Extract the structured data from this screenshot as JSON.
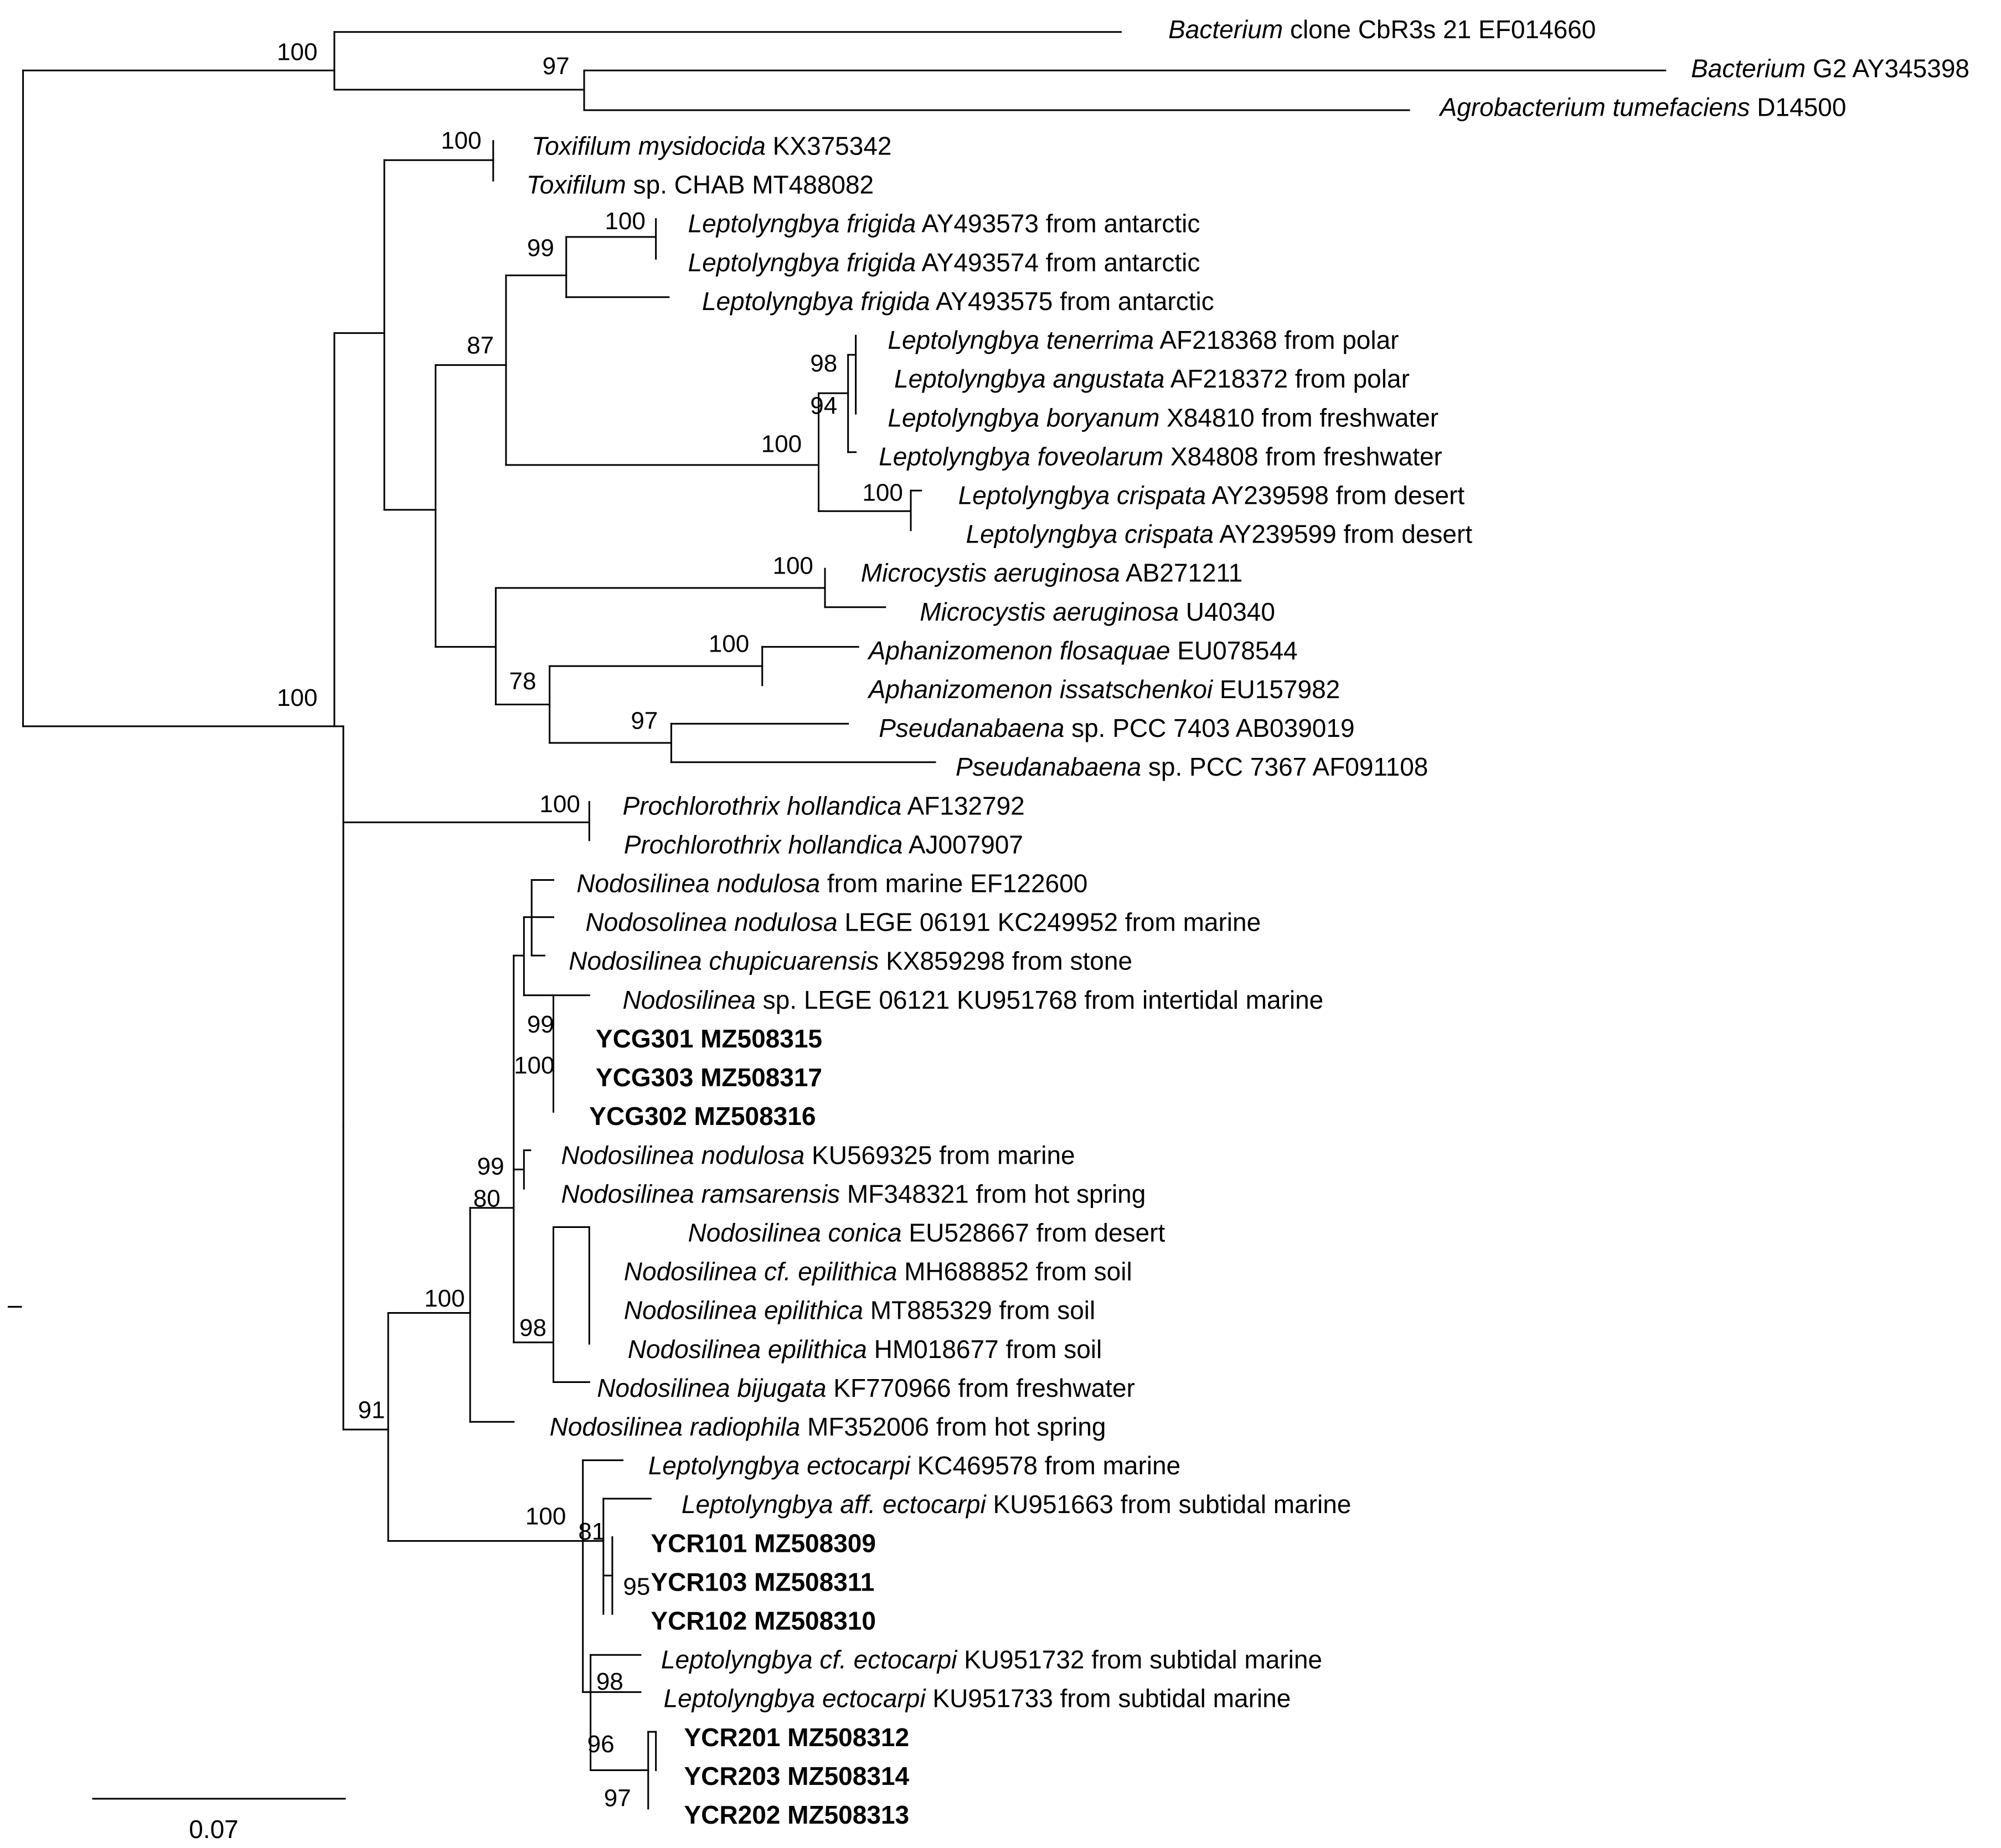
{
  "figure": {
    "type": "phylogenetic_tree",
    "scale_bar": {
      "label": "0.07"
    },
    "stray_mark": "–"
  },
  "taxa": [
    {
      "id": "t1",
      "parts": [
        [
          "i",
          "Bacterium"
        ],
        [
          "n",
          " clone CbR3s 21 EF014660"
        ]
      ]
    },
    {
      "id": "t2",
      "parts": [
        [
          "i",
          "Bacterium"
        ],
        [
          "n",
          " G2 AY345398"
        ]
      ]
    },
    {
      "id": "t3",
      "parts": [
        [
          "i",
          "Agrobacterium tumefaciens"
        ],
        [
          "n",
          " D14500"
        ]
      ]
    },
    {
      "id": "t4",
      "parts": [
        [
          "i",
          "Toxifilum mysidocida"
        ],
        [
          "n",
          " KX375342"
        ]
      ]
    },
    {
      "id": "t5",
      "parts": [
        [
          "i",
          "Toxifilum"
        ],
        [
          "n",
          " sp. CHAB MT488082"
        ]
      ]
    },
    {
      "id": "t6",
      "parts": [
        [
          "i",
          "Leptolyngbya frigida"
        ],
        [
          "n",
          " AY493573 from antarctic"
        ]
      ]
    },
    {
      "id": "t7",
      "parts": [
        [
          "i",
          "Leptolyngbya frigida"
        ],
        [
          "n",
          " AY493574 from antarctic"
        ]
      ]
    },
    {
      "id": "t8",
      "parts": [
        [
          "i",
          "Leptolyngbya frigida"
        ],
        [
          "n",
          " AY493575 from antarctic"
        ]
      ]
    },
    {
      "id": "t9",
      "parts": [
        [
          "i",
          "Leptolyngbya tenerrima"
        ],
        [
          "n",
          " AF218368 from polar"
        ]
      ]
    },
    {
      "id": "t10",
      "parts": [
        [
          "i",
          "Leptolyngbya angustata"
        ],
        [
          "n",
          " AF218372 from polar"
        ]
      ]
    },
    {
      "id": "t11",
      "parts": [
        [
          "i",
          "Leptolyngbya boryanum"
        ],
        [
          "n",
          " X84810 from freshwater"
        ]
      ]
    },
    {
      "id": "t12",
      "parts": [
        [
          "i",
          "Leptolyngbya foveolarum"
        ],
        [
          "n",
          " X84808 from freshwater"
        ]
      ]
    },
    {
      "id": "t13",
      "parts": [
        [
          "i",
          "Leptolyngbya crispata"
        ],
        [
          "n",
          " AY239598 from desert"
        ]
      ]
    },
    {
      "id": "t14",
      "parts": [
        [
          "i",
          "Leptolyngbya crispata"
        ],
        [
          "n",
          " AY239599 from desert"
        ]
      ]
    },
    {
      "id": "t15",
      "parts": [
        [
          "i",
          "Microcystis aeruginosa"
        ],
        [
          "n",
          " AB271211"
        ]
      ]
    },
    {
      "id": "t16",
      "parts": [
        [
          "i",
          "Microcystis aeruginosa"
        ],
        [
          "n",
          " U40340"
        ]
      ]
    },
    {
      "id": "t17",
      "parts": [
        [
          "i",
          "Aphanizomenon flosaquae"
        ],
        [
          "n",
          " EU078544"
        ]
      ]
    },
    {
      "id": "t18",
      "parts": [
        [
          "i",
          "Aphanizomenon issatschenkoi"
        ],
        [
          "n",
          " EU157982"
        ]
      ]
    },
    {
      "id": "t19",
      "parts": [
        [
          "i",
          "Pseudanabaena"
        ],
        [
          "n",
          " sp. PCC 7403 AB039019"
        ]
      ]
    },
    {
      "id": "t20",
      "parts": [
        [
          "i",
          "Pseudanabaena"
        ],
        [
          "n",
          " sp. PCC 7367 AF091108"
        ]
      ]
    },
    {
      "id": "t21",
      "parts": [
        [
          "i",
          "Prochlorothrix hollandica"
        ],
        [
          "n",
          " AF132792"
        ]
      ]
    },
    {
      "id": "t22",
      "parts": [
        [
          "i",
          "Prochlorothrix hollandica"
        ],
        [
          "n",
          " AJ007907"
        ]
      ]
    },
    {
      "id": "t23",
      "parts": [
        [
          "i",
          "Nodosilinea nodulosa"
        ],
        [
          "n",
          " from marine EF122600"
        ]
      ]
    },
    {
      "id": "t24",
      "parts": [
        [
          "i",
          "Nodosolinea nodulosa"
        ],
        [
          "n",
          " LEGE 06191 KC249952 from marine"
        ]
      ]
    },
    {
      "id": "t25",
      "parts": [
        [
          "i",
          "Nodosilinea chupicuarensis"
        ],
        [
          "n",
          " KX859298 from stone"
        ]
      ]
    },
    {
      "id": "t26",
      "parts": [
        [
          "i",
          "Nodosilinea"
        ],
        [
          "n",
          " sp. LEGE 06121 KU951768 from intertidal marine"
        ]
      ]
    },
    {
      "id": "t27",
      "bold": true,
      "parts": [
        [
          "b",
          "YCG301 MZ508315"
        ]
      ]
    },
    {
      "id": "t28",
      "bold": true,
      "parts": [
        [
          "b",
          "YCG303 MZ508317"
        ]
      ]
    },
    {
      "id": "t29",
      "bold": true,
      "parts": [
        [
          "b",
          "YCG302 MZ508316"
        ]
      ]
    },
    {
      "id": "t30",
      "parts": [
        [
          "i",
          "Nodosilinea nodulosa"
        ],
        [
          "n",
          " KU569325 from marine"
        ]
      ]
    },
    {
      "id": "t31",
      "parts": [
        [
          "i",
          "Nodosilinea ramsarensis"
        ],
        [
          "n",
          " MF348321 from hot spring"
        ]
      ]
    },
    {
      "id": "t32",
      "parts": [
        [
          "i",
          "Nodosilinea conica"
        ],
        [
          "n",
          " EU528667 from desert"
        ]
      ]
    },
    {
      "id": "t33",
      "parts": [
        [
          "i",
          "Nodosilinea cf. epilithica"
        ],
        [
          "n",
          " MH688852 from soil"
        ]
      ]
    },
    {
      "id": "t34",
      "parts": [
        [
          "i",
          "Nodosilinea epilithica"
        ],
        [
          "n",
          " MT885329 from soil"
        ]
      ]
    },
    {
      "id": "t35",
      "parts": [
        [
          "i",
          "Nodosilinea epilithica"
        ],
        [
          "n",
          " HM018677 from soil"
        ]
      ]
    },
    {
      "id": "t36",
      "parts": [
        [
          "i",
          "Nodosilinea bijugata"
        ],
        [
          "n",
          " KF770966 from freshwater"
        ]
      ]
    },
    {
      "id": "t37",
      "parts": [
        [
          "i",
          "Nodosilinea radiophila"
        ],
        [
          "n",
          " MF352006 from hot spring"
        ]
      ]
    },
    {
      "id": "t38",
      "parts": [
        [
          "i",
          "Leptolyngbya ectocarpi"
        ],
        [
          "n",
          " KC469578 from marine"
        ]
      ]
    },
    {
      "id": "t39",
      "parts": [
        [
          "i",
          "Leptolyngbya aff. ectocarpi"
        ],
        [
          "n",
          " KU951663 from subtidal marine"
        ]
      ]
    },
    {
      "id": "t40",
      "bold": true,
      "parts": [
        [
          "b",
          "YCR101 MZ508309"
        ]
      ]
    },
    {
      "id": "t41",
      "bold": true,
      "parts": [
        [
          "b",
          "YCR103 MZ508311"
        ]
      ]
    },
    {
      "id": "t42",
      "bold": true,
      "parts": [
        [
          "b",
          "YCR102 MZ508310"
        ]
      ]
    },
    {
      "id": "t43",
      "parts": [
        [
          "i",
          "Leptolyngbya cf. ectocarpi"
        ],
        [
          "n",
          " KU951732 from subtidal marine"
        ]
      ]
    },
    {
      "id": "t44",
      "parts": [
        [
          "i",
          "Leptolyngbya ectocarpi"
        ],
        [
          "n",
          " KU951733 from subtidal marine"
        ]
      ]
    },
    {
      "id": "t45",
      "bold": true,
      "parts": [
        [
          "b",
          "YCR201 MZ508312"
        ]
      ]
    },
    {
      "id": "t46",
      "bold": true,
      "parts": [
        [
          "b",
          "YCR203 MZ508314"
        ]
      ]
    },
    {
      "id": "t47",
      "bold": true,
      "parts": [
        [
          "b",
          "YCR202  MZ508313"
        ]
      ]
    }
  ],
  "bootstrap": [
    {
      "id": "b1",
      "value": "100"
    },
    {
      "id": "b2",
      "value": "97"
    },
    {
      "id": "b3",
      "value": "100"
    },
    {
      "id": "b4",
      "value": "100"
    },
    {
      "id": "b5",
      "value": "99"
    },
    {
      "id": "b6",
      "value": "100"
    },
    {
      "id": "b7",
      "value": "87"
    },
    {
      "id": "b8",
      "value": "98"
    },
    {
      "id": "b9",
      "value": "94"
    },
    {
      "id": "b10",
      "value": "100"
    },
    {
      "id": "b11",
      "value": "100"
    },
    {
      "id": "b12",
      "value": "100"
    },
    {
      "id": "b13",
      "value": "100"
    },
    {
      "id": "b14",
      "value": "78"
    },
    {
      "id": "b15",
      "value": "97"
    },
    {
      "id": "b16",
      "value": "100"
    },
    {
      "id": "b17",
      "value": "99"
    },
    {
      "id": "b18",
      "value": "100"
    },
    {
      "id": "b19",
      "value": "99"
    },
    {
      "id": "b20",
      "value": "80"
    },
    {
      "id": "b21",
      "value": "100"
    },
    {
      "id": "b22",
      "value": "98"
    },
    {
      "id": "b23",
      "value": "91"
    },
    {
      "id": "b24",
      "value": "100"
    },
    {
      "id": "b25",
      "value": "81"
    },
    {
      "id": "b26",
      "value": "95"
    },
    {
      "id": "b27",
      "value": "98"
    },
    {
      "id": "b28",
      "value": "96"
    },
    {
      "id": "b29",
      "value": "97"
    }
  ]
}
